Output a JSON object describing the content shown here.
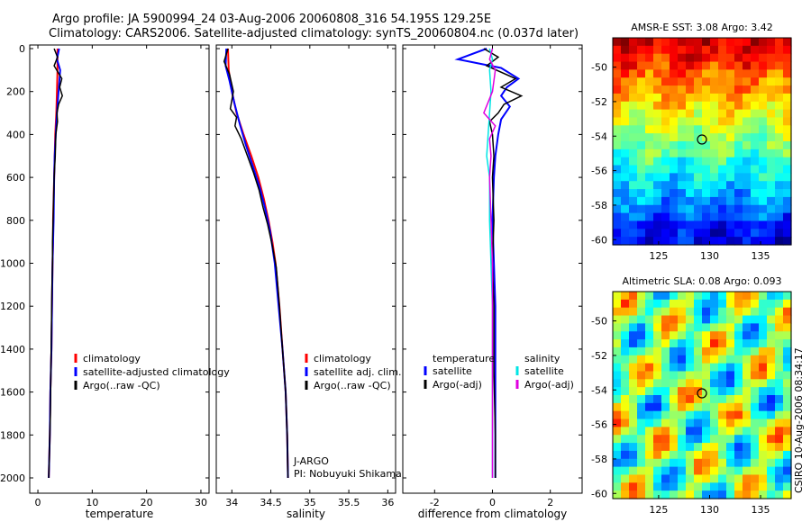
{
  "figure": {
    "title_line1": "Argo profile: JA 5900994_24 03-Aug-2006 20060808_316 54.195S 129.25E",
    "title_line2": "Climatology: CARS2006. Satellite-adjusted climatology: synTS_20060804.nc (0.037d later)",
    "stamp": "CSIRO 10-Aug-2006 08:34:17",
    "float_text_1": "J-ARGO",
    "float_text_2": "PI: Nobuyuki Shikama"
  },
  "colors": {
    "climatology": "#ff0000",
    "satellite": "#0000ff",
    "argo": "#000000",
    "satellite_sal_diff": "#00e5e5",
    "argo_sal_diff": "#e000e0",
    "marker": "#000000"
  },
  "chart_data": [
    {
      "type": "line",
      "id": "temperature",
      "xlabel": "temperature",
      "xlim": [
        -1.5,
        31.5
      ],
      "ylim": [
        2050,
        0
      ],
      "xticks": [
        0,
        10,
        20,
        30
      ],
      "yticks": [
        0,
        200,
        400,
        600,
        800,
        1000,
        1200,
        1400,
        1600,
        1800,
        2000
      ],
      "legend": [
        "climatology",
        "satellite-adjusted climatology",
        "Argo(..raw -QC)"
      ],
      "legend_position": "lower-middle",
      "series": [
        {
          "name": "climatology",
          "color": "red",
          "points": [
            [
              3.6,
              0
            ],
            [
              3.6,
              100
            ],
            [
              3.5,
              200
            ],
            [
              3.4,
              300
            ],
            [
              3.2,
              400
            ],
            [
              3.1,
              500
            ],
            [
              3.0,
              600
            ],
            [
              2.9,
              700
            ],
            [
              2.8,
              800
            ],
            [
              2.8,
              900
            ],
            [
              2.7,
              1000
            ],
            [
              2.6,
              1200
            ],
            [
              2.5,
              1400
            ],
            [
              2.3,
              1600
            ],
            [
              2.2,
              1800
            ],
            [
              2.0,
              2000
            ]
          ]
        },
        {
          "name": "satellite-adjusted climatology",
          "color": "blue",
          "points": [
            [
              3.9,
              0
            ],
            [
              3.5,
              50
            ],
            [
              4.1,
              100
            ],
            [
              3.8,
              200
            ],
            [
              3.5,
              300
            ],
            [
              3.3,
              400
            ],
            [
              3.1,
              500
            ],
            [
              3.0,
              600
            ],
            [
              2.9,
              800
            ],
            [
              2.7,
              1000
            ],
            [
              2.6,
              1200
            ],
            [
              2.5,
              1400
            ],
            [
              2.3,
              1600
            ],
            [
              2.2,
              1800
            ],
            [
              2.0,
              2000
            ]
          ]
        },
        {
          "name": "Argo(..raw -QC)",
          "color": "black",
          "points": [
            [
              3.0,
              0
            ],
            [
              3.6,
              40
            ],
            [
              3.0,
              80
            ],
            [
              4.4,
              140
            ],
            [
              4.0,
              180
            ],
            [
              4.5,
              220
            ],
            [
              3.8,
              260
            ],
            [
              3.5,
              300
            ],
            [
              3.6,
              340
            ],
            [
              3.3,
              400
            ],
            [
              3.2,
              500
            ],
            [
              3.0,
              600
            ],
            [
              2.9,
              700
            ],
            [
              2.8,
              800
            ],
            [
              2.7,
              900
            ],
            [
              2.7,
              1000
            ],
            [
              2.6,
              1100
            ],
            [
              2.5,
              1300
            ],
            [
              2.4,
              1500
            ],
            [
              2.3,
              1700
            ],
            [
              2.1,
              1900
            ],
            [
              2.0,
              2000
            ]
          ]
        }
      ]
    },
    {
      "type": "line",
      "id": "salinity",
      "xlabel": "salinity",
      "xlim": [
        33.8,
        36.1
      ],
      "ylim": [
        2050,
        0
      ],
      "xticks": [
        34,
        34.5,
        35,
        35.5,
        36
      ],
      "legend": [
        "climatology",
        "satellite adj. clim.",
        "Argo(..raw -QC)"
      ],
      "legend_position": "lower-right",
      "series": [
        {
          "name": "climatology",
          "color": "red",
          "points": [
            [
              33.95,
              0
            ],
            [
              33.96,
              100
            ],
            [
              34.0,
              200
            ],
            [
              34.06,
              300
            ],
            [
              34.15,
              400
            ],
            [
              34.25,
              500
            ],
            [
              34.34,
              600
            ],
            [
              34.41,
              700
            ],
            [
              34.47,
              800
            ],
            [
              34.52,
              900
            ],
            [
              34.56,
              1000
            ],
            [
              34.61,
              1200
            ],
            [
              34.65,
              1400
            ],
            [
              34.69,
              1600
            ],
            [
              34.71,
              1800
            ],
            [
              34.72,
              2000
            ]
          ]
        },
        {
          "name": "satellite adj. clim.",
          "color": "blue",
          "points": [
            [
              33.93,
              0
            ],
            [
              33.92,
              80
            ],
            [
              33.97,
              150
            ],
            [
              34.03,
              250
            ],
            [
              34.1,
              350
            ],
            [
              34.18,
              450
            ],
            [
              34.27,
              550
            ],
            [
              34.36,
              650
            ],
            [
              34.43,
              750
            ],
            [
              34.49,
              850
            ],
            [
              34.55,
              1000
            ],
            [
              34.6,
              1200
            ],
            [
              34.65,
              1400
            ],
            [
              34.69,
              1600
            ],
            [
              34.71,
              1800
            ],
            [
              34.72,
              2000
            ]
          ]
        },
        {
          "name": "Argo(..raw -QC)",
          "color": "black",
          "points": [
            [
              33.95,
              0
            ],
            [
              33.9,
              60
            ],
            [
              33.97,
              120
            ],
            [
              34.02,
              200
            ],
            [
              33.98,
              280
            ],
            [
              34.06,
              320
            ],
            [
              34.04,
              360
            ],
            [
              34.12,
              420
            ],
            [
              34.2,
              500
            ],
            [
              34.28,
              580
            ],
            [
              34.35,
              660
            ],
            [
              34.4,
              740
            ],
            [
              34.46,
              820
            ],
            [
              34.52,
              920
            ],
            [
              34.57,
              1020
            ],
            [
              34.61,
              1200
            ],
            [
              34.65,
              1400
            ],
            [
              34.69,
              1600
            ],
            [
              34.71,
              1800
            ],
            [
              34.72,
              2000
            ]
          ]
        }
      ]
    },
    {
      "type": "line",
      "id": "difference",
      "xlabel": "difference from climatology",
      "xlim": [
        -3.1,
        3.1
      ],
      "ylim": [
        2050,
        0
      ],
      "xticks": [
        -2,
        0,
        2
      ],
      "legend_temperature_title": "temperature",
      "legend_salinity_title": "salinity",
      "legend": [
        "satellite",
        "Argo(-adj)",
        "satellite",
        "Argo(-adj)"
      ],
      "legend_position": "lower-middle",
      "series": [
        {
          "name": "satellite",
          "color": "blue",
          "group": "temperature",
          "points": [
            [
              -0.2,
              0
            ],
            [
              -1.2,
              50
            ],
            [
              0.3,
              90
            ],
            [
              0.9,
              140
            ],
            [
              0.5,
              180
            ],
            [
              0.3,
              220
            ],
            [
              0.6,
              270
            ],
            [
              0.3,
              330
            ],
            [
              0.2,
              400
            ],
            [
              0.1,
              500
            ],
            [
              0.05,
              600
            ],
            [
              0.0,
              800
            ],
            [
              0.05,
              1000
            ],
            [
              0.1,
              1200
            ],
            [
              0.1,
              1500
            ],
            [
              0.1,
              1800
            ],
            [
              0.1,
              2000
            ]
          ]
        },
        {
          "name": "Argo(-adj)",
          "color": "black",
          "group": "temperature",
          "points": [
            [
              -0.3,
              0
            ],
            [
              0.2,
              40
            ],
            [
              -0.2,
              80
            ],
            [
              0.8,
              140
            ],
            [
              0.3,
              180
            ],
            [
              1.0,
              220
            ],
            [
              0.4,
              260
            ],
            [
              0.2,
              300
            ],
            [
              -0.1,
              340
            ],
            [
              0.0,
              400
            ],
            [
              0.05,
              500
            ],
            [
              0.0,
              600
            ],
            [
              0.05,
              800
            ],
            [
              0.0,
              1000
            ],
            [
              0.05,
              1200
            ],
            [
              0.05,
              1500
            ],
            [
              0.1,
              1800
            ],
            [
              0.1,
              2000
            ]
          ]
        },
        {
          "name": "satellite",
          "color": "cyan",
          "group": "salinity",
          "points": [
            [
              -0.1,
              0
            ],
            [
              0.0,
              50
            ],
            [
              -0.1,
              100
            ],
            [
              -0.05,
              200
            ],
            [
              -0.1,
              300
            ],
            [
              -0.15,
              400
            ],
            [
              -0.2,
              500
            ],
            [
              -0.1,
              600
            ],
            [
              -0.1,
              800
            ],
            [
              -0.05,
              1000
            ],
            [
              0.0,
              1200
            ],
            [
              0.0,
              1500
            ],
            [
              0.0,
              1800
            ],
            [
              0.0,
              2000
            ]
          ]
        },
        {
          "name": "Argo(-adj)",
          "color": "magenta",
          "group": "salinity",
          "points": [
            [
              0.0,
              0
            ],
            [
              -0.1,
              50
            ],
            [
              0.1,
              100
            ],
            [
              0.0,
              200
            ],
            [
              -0.3,
              300
            ],
            [
              0.1,
              360
            ],
            [
              -0.1,
              420
            ],
            [
              -0.05,
              500
            ],
            [
              -0.1,
              600
            ],
            [
              -0.05,
              800
            ],
            [
              0.0,
              1000
            ],
            [
              0.0,
              1200
            ],
            [
              0.0,
              1500
            ],
            [
              0.0,
              1800
            ],
            [
              0.0,
              2000
            ]
          ]
        }
      ]
    },
    {
      "type": "heatmap",
      "id": "sst_map",
      "title": "AMSR-E SST: 3.08 Argo: 3.42",
      "xlim": [
        120.5,
        138
      ],
      "ylim": [
        -60.3,
        -48.3
      ],
      "xticks": [
        125,
        130,
        135
      ],
      "yticks": [
        -50,
        -52,
        -54,
        -56,
        -58,
        -60
      ],
      "profile_location": [
        129.25,
        -54.195
      ]
    },
    {
      "type": "heatmap",
      "id": "sla_map",
      "title": "Altimetric SLA: 0.08 Argo: 0.093",
      "xlim": [
        120.5,
        138
      ],
      "ylim": [
        -60.3,
        -48.3
      ],
      "xticks": [
        125,
        130,
        135
      ],
      "yticks": [
        -50,
        -52,
        -54,
        -56,
        -58,
        -60
      ],
      "profile_location": [
        129.25,
        -54.195
      ]
    }
  ]
}
